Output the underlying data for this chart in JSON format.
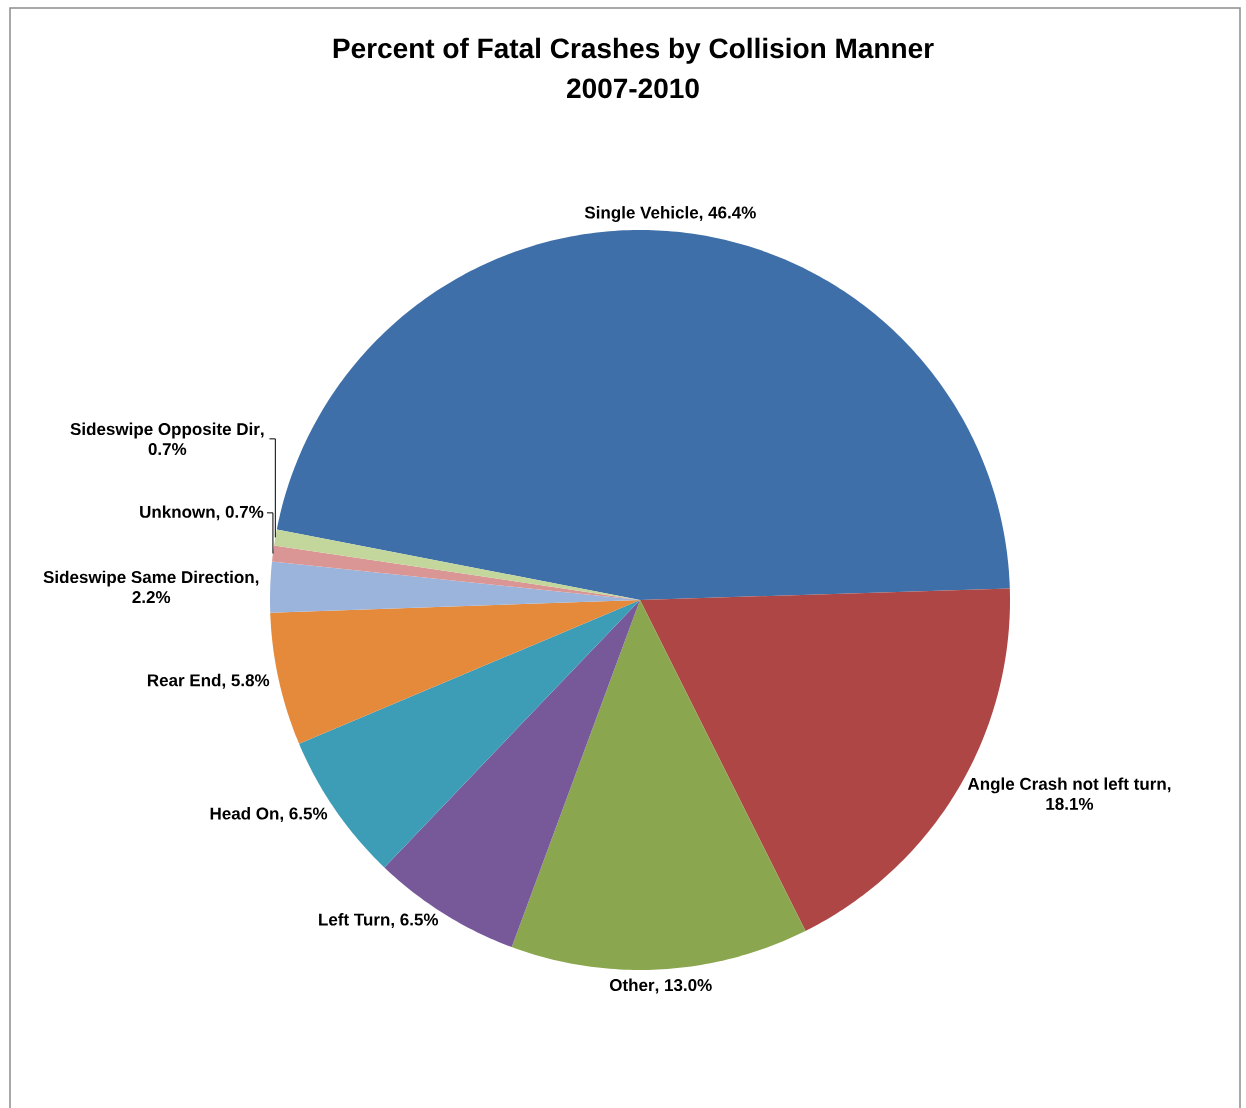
{
  "chart_data": {
    "type": "pie",
    "title": "Percent of Fatal Crashes by Collision Manner",
    "subtitle": "2007-2010",
    "categories": [
      "Single Vehicle",
      "Angle Crash not left turn",
      "Other",
      "Left Turn",
      "Head On",
      "Rear End",
      "Sideswipe Same Direction",
      "Unknown",
      "Sideswipe Opposite Dir"
    ],
    "values": [
      46.4,
      18.1,
      13.0,
      6.5,
      6.5,
      5.8,
      2.2,
      0.7,
      0.7
    ],
    "value_labels": [
      ", 46.4%",
      ", 18.1%",
      ", 13.0%",
      ", 6.5%",
      ", 6.5%",
      ", 5.8%",
      ", 2.2%",
      ", 0.7%",
      ", 0.7%"
    ],
    "colors": [
      "#3e6fa8",
      "#ad4644",
      "#8aa64e",
      "#77599a",
      "#3d9db6",
      "#e5893b",
      "#9bb4dc",
      "#d99694",
      "#c3d69b"
    ]
  }
}
